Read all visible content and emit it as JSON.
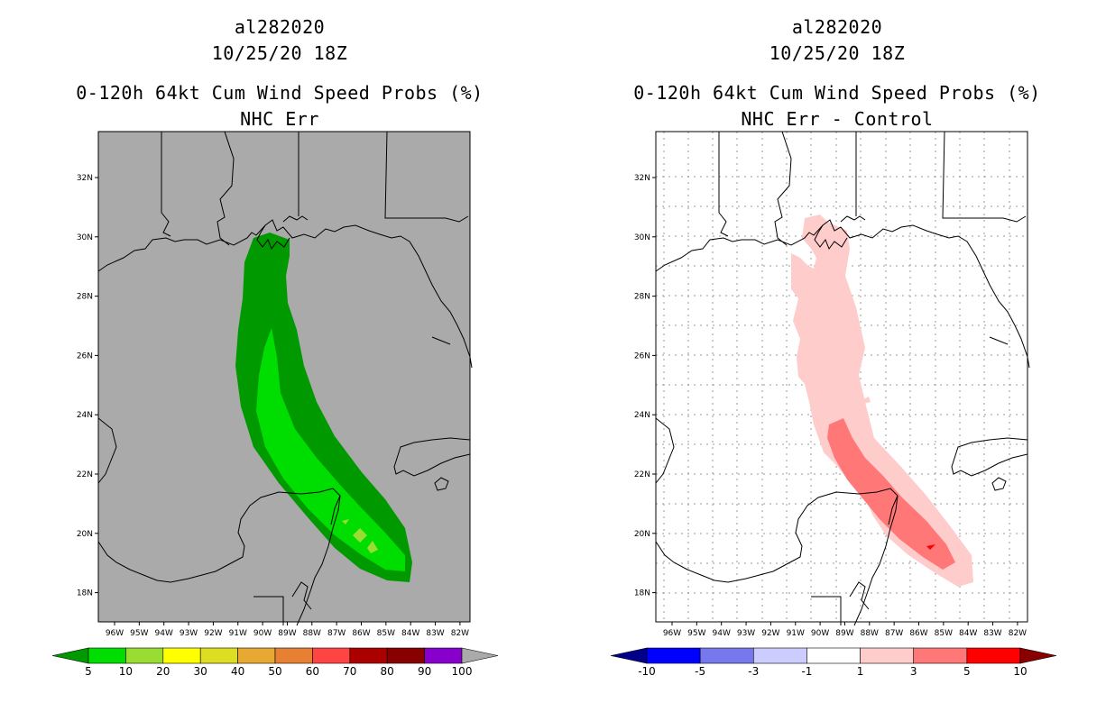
{
  "panels": [
    {
      "storm_id": "al282020",
      "datetime": "10/25/20 18Z",
      "product": "0-120h 64kt Cum Wind Speed Probs (%)",
      "subtitle": "NHC Err",
      "background": "#aaaaaa",
      "y_ticks": [
        "32N",
        "30N",
        "28N",
        "26N",
        "24N",
        "22N",
        "20N",
        "18N"
      ],
      "x_ticks": [
        "96W",
        "95W",
        "94W",
        "93W",
        "92W",
        "91W",
        "90W",
        "89W",
        "88W",
        "87W",
        "86W",
        "85W",
        "84W",
        "83W",
        "82W"
      ],
      "colorbar": {
        "labels": [
          "5",
          "10",
          "20",
          "30",
          "40",
          "50",
          "60",
          "70",
          "80",
          "90",
          "100"
        ],
        "colors": [
          "#009a00",
          "#00dd00",
          "#99dd33",
          "#ffff00",
          "#dddd22",
          "#e8a933",
          "#e88033",
          "#ff4444",
          "#aa0000",
          "#880000",
          "#8800cc",
          "#aaaaaa"
        ]
      }
    },
    {
      "storm_id": "al282020",
      "datetime": "10/25/20 18Z",
      "product": "0-120h 64kt Cum Wind Speed Probs (%)",
      "subtitle": "NHC Err - Control",
      "background": "#ffffff",
      "y_ticks": [
        "32N",
        "30N",
        "28N",
        "26N",
        "24N",
        "22N",
        "20N",
        "18N"
      ],
      "x_ticks": [
        "96W",
        "95W",
        "94W",
        "93W",
        "92W",
        "91W",
        "90W",
        "89W",
        "88W",
        "87W",
        "86W",
        "85W",
        "84W",
        "83W",
        "82W"
      ],
      "colorbar": {
        "labels": [
          "-10",
          "-5",
          "-3",
          "-1",
          "1",
          "3",
          "5",
          "10"
        ],
        "colors": [
          "#000088",
          "#0000ff",
          "#7777ee",
          "#ccccff",
          "#ffffff",
          "#ffcccc",
          "#ff7777",
          "#ff0000",
          "#880000"
        ]
      }
    }
  ]
}
